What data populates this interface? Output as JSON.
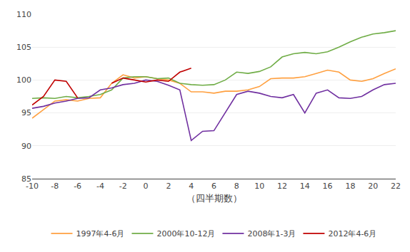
{
  "chart_data": {
    "type": "line",
    "x": [
      -10,
      -9,
      -8,
      -7,
      -6,
      -5,
      -4,
      -3,
      -2,
      -1,
      0,
      1,
      2,
      3,
      4,
      5,
      6,
      7,
      8,
      9,
      10,
      11,
      12,
      13,
      14,
      15,
      16,
      17,
      18,
      19,
      20,
      21,
      22
    ],
    "series": [
      {
        "name": "1997年4-6月",
        "color": "#FFA040",
        "values": [
          94.2,
          95.5,
          96.8,
          97.0,
          96.8,
          97.2,
          97.3,
          99.5,
          100.8,
          100.3,
          100.5,
          100.2,
          100.0,
          99.5,
          98.2,
          98.2,
          98.0,
          98.3,
          98.3,
          98.5,
          99.0,
          100.2,
          100.3,
          100.3,
          100.5,
          101.0,
          101.5,
          101.2,
          100.0,
          99.8,
          100.2,
          101.0,
          101.7
        ]
      },
      {
        "name": "2000年10-12月",
        "color": "#70AD47",
        "values": [
          97.2,
          97.3,
          97.2,
          97.5,
          97.3,
          97.5,
          97.8,
          98.5,
          100.3,
          100.5,
          100.5,
          100.2,
          100.3,
          99.5,
          99.3,
          99.2,
          99.3,
          100.0,
          101.2,
          101.0,
          101.3,
          102.0,
          103.5,
          104.0,
          104.2,
          104.0,
          104.3,
          105.0,
          105.8,
          106.5,
          107.0,
          107.2,
          107.5
        ]
      },
      {
        "name": "2008年1-3月",
        "color": "#7030A0",
        "values": [
          95.7,
          96.0,
          96.5,
          96.8,
          97.2,
          97.3,
          98.5,
          98.8,
          99.3,
          99.5,
          100.0,
          99.8,
          99.2,
          98.5,
          90.8,
          92.2,
          92.3,
          95.0,
          97.8,
          98.3,
          98.0,
          97.5,
          97.3,
          97.8,
          95.0,
          98.0,
          98.5,
          97.3,
          97.2,
          97.5,
          98.5,
          99.3,
          99.5
        ]
      },
      {
        "name": "2012年4-6月",
        "color": "#C00000",
        "values": [
          96.2,
          97.5,
          100.0,
          99.8,
          97.3,
          null,
          null,
          99.5,
          100.3,
          100.0,
          99.7,
          100.0,
          99.8,
          101.2,
          101.8,
          null,
          null,
          null,
          null,
          null,
          null,
          null,
          null,
          null,
          null,
          null,
          null,
          null,
          null,
          null,
          null,
          null,
          null
        ]
      }
    ],
    "xlim": [
      -10,
      22
    ],
    "ylim": [
      85,
      110
    ],
    "xticks": [
      -10,
      -8,
      -6,
      -4,
      -2,
      0,
      2,
      4,
      6,
      8,
      10,
      12,
      14,
      16,
      18,
      20,
      22
    ],
    "yticks": [
      85,
      90,
      95,
      100,
      105,
      110
    ],
    "xlabel": "（四半期数）",
    "grid": "y",
    "legend": "bottom"
  }
}
